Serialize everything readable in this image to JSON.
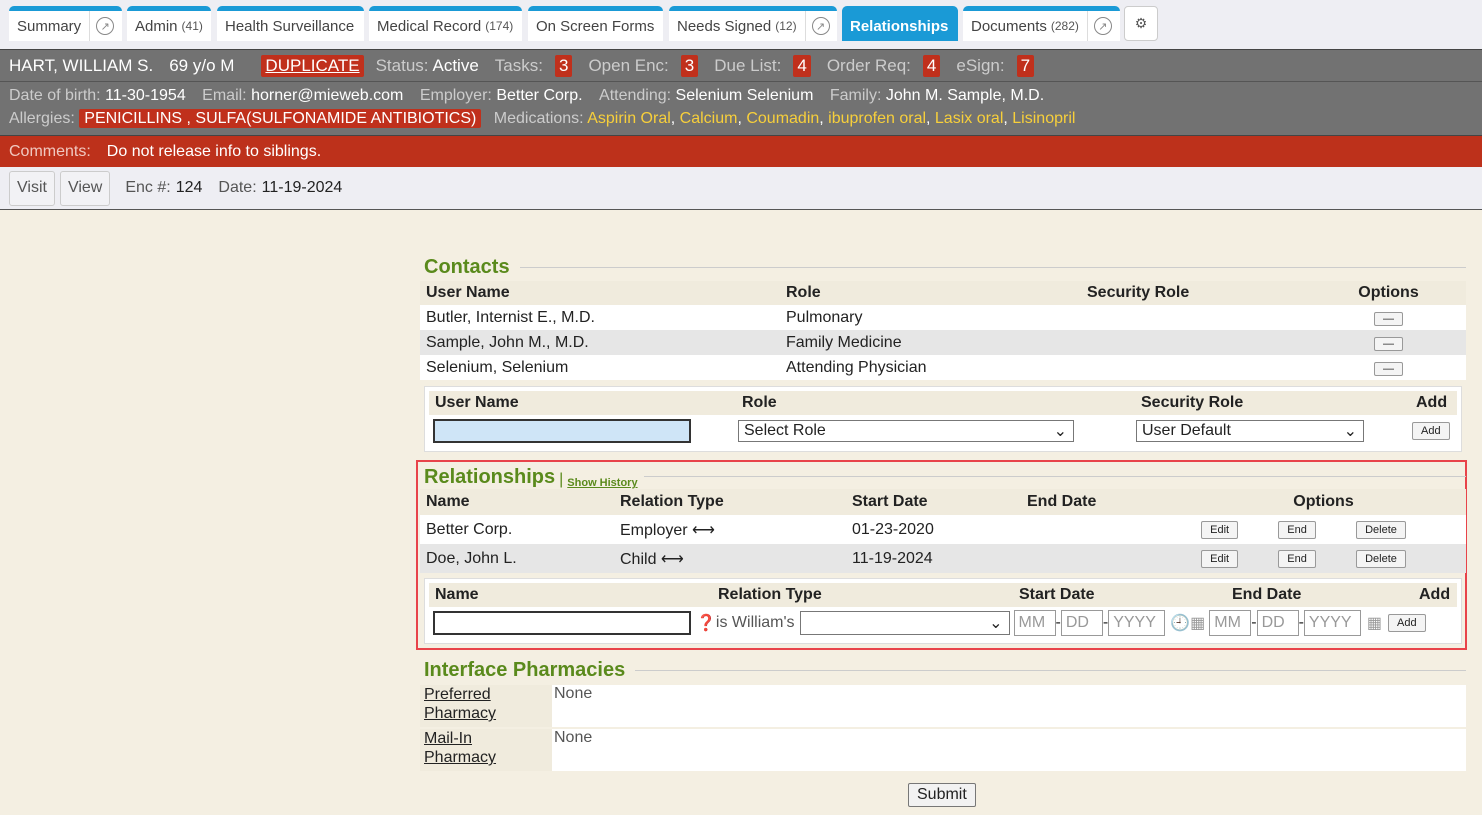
{
  "tabs": [
    {
      "label": "Summary",
      "count": "",
      "ext": true
    },
    {
      "label": "Admin",
      "count": "(41)"
    },
    {
      "label": "Health Surveillance",
      "count": ""
    },
    {
      "label": "Medical Record",
      "count": "(174)"
    },
    {
      "label": "On Screen Forms",
      "count": ""
    },
    {
      "label": "Needs Signed",
      "count": "(12)",
      "ext": true
    },
    {
      "label": "Relationships",
      "count": "",
      "active": true
    },
    {
      "label": "Documents",
      "count": "(282)",
      "ext": true
    }
  ],
  "patient": {
    "name": "HART, WILLIAM S.",
    "age": "69 y/o M",
    "duplicate": "DUPLICATE",
    "status_label": "Status:",
    "status": "Active",
    "tasks_label": "Tasks:",
    "tasks": "3",
    "openenc_label": "Open Enc:",
    "openenc": "3",
    "due_label": "Due List:",
    "due": "4",
    "order_label": "Order Req:",
    "order": "4",
    "esign_label": "eSign:",
    "esign": "7",
    "dob_label": "Date of birth:",
    "dob": "11-30-1954",
    "email_label": "Email:",
    "email": "horner@mieweb.com",
    "employer_label": "Employer:",
    "employer": "Better Corp.",
    "attending_label": "Attending:",
    "attending": "Selenium Selenium",
    "family_label": "Family:",
    "family": "John M. Sample, M.D.",
    "allergies_label": "Allergies:",
    "allergies": "PENICILLINS , SULFA(SULFONAMIDE ANTIBIOTICS)",
    "medications_label": "Medications:",
    "medications": [
      "Aspirin Oral",
      "Calcium",
      "Coumadin",
      "ibuprofen oral",
      "Lasix oral",
      "Lisinopril"
    ],
    "comments_label": "Comments:",
    "comments": "Do not release info to siblings."
  },
  "encounter": {
    "visit": "Visit",
    "view": "View",
    "enc_label": "Enc #:",
    "enc": "124",
    "date_label": "Date:",
    "date": "11-19-2024"
  },
  "contacts": {
    "title": "Contacts",
    "headers": [
      "User Name",
      "Role",
      "Security Role",
      "Options"
    ],
    "rows": [
      {
        "name": "Butler, Internist E., M.D.",
        "role": "Pulmonary"
      },
      {
        "name": "Sample, John M., M.D.",
        "role": "Family Medicine"
      },
      {
        "name": "Selenium, Selenium",
        "role": "Attending Physician"
      }
    ],
    "remove_label": "—",
    "add_headers": [
      "User Name",
      "Role",
      "Security Role",
      "Add"
    ],
    "role_select": "Select Role",
    "security_select": "User Default",
    "add_label": "Add"
  },
  "relationships": {
    "title": "Relationships",
    "show_history": "Show History",
    "headers": [
      "Name",
      "Relation Type",
      "Start Date",
      "End Date",
      "Options"
    ],
    "rows": [
      {
        "name": "Better Corp.",
        "type": "Employer",
        "start": "01-23-2020",
        "end": ""
      },
      {
        "name": "Doe, John L.",
        "type": "Child",
        "start": "11-19-2024",
        "end": ""
      }
    ],
    "edit": "Edit",
    "end": "End",
    "delete": "Delete",
    "add_headers": [
      "Name",
      "Relation Type",
      "Start Date",
      "End Date",
      "Add"
    ],
    "is_label": "is William's",
    "mm": "MM",
    "dd": "DD",
    "yyyy": "YYYY",
    "add_label": "Add"
  },
  "pharmacies": {
    "title": "Interface Pharmacies",
    "rows": [
      {
        "label1": "Preferred",
        "label2": "Pharmacy",
        "value": "None"
      },
      {
        "label1": "Mail-In",
        "label2": "Pharmacy",
        "value": "None"
      }
    ]
  },
  "submit": "Submit",
  "colors": {
    "accent": "#1a9ad6",
    "badge": "#c0301c",
    "legend": "#5a8a1c",
    "highlight": "#e8434a"
  }
}
